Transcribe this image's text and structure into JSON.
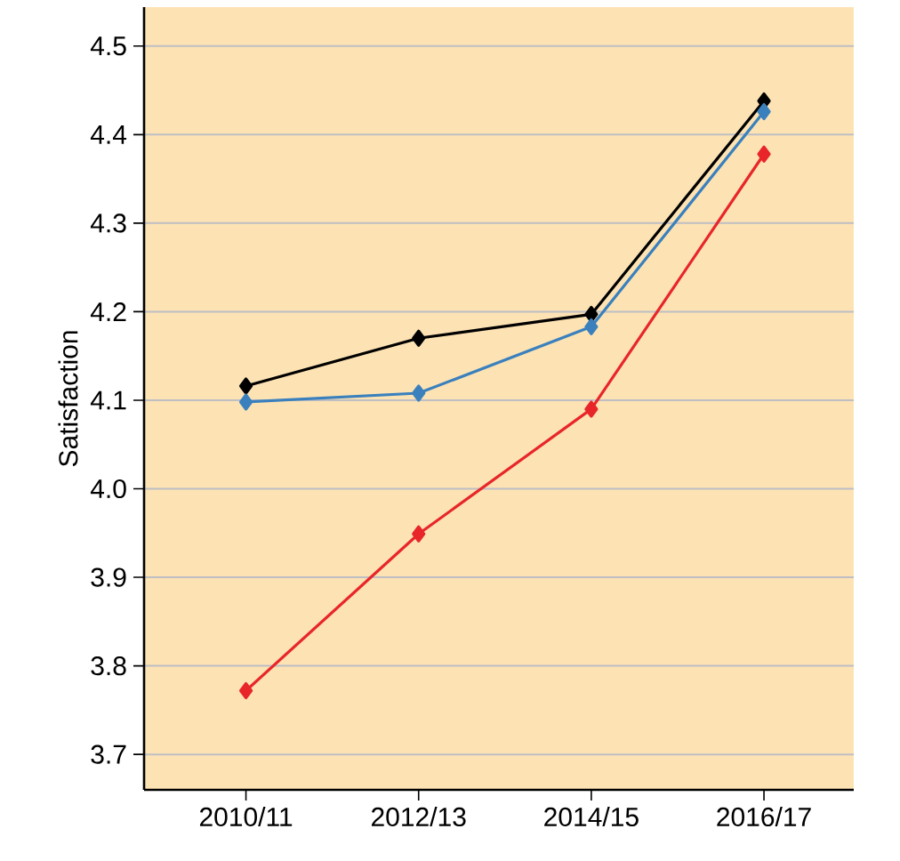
{
  "chart_data": {
    "type": "line",
    "ylabel": "Satisfaction",
    "categories": [
      "2010/11",
      "2012/13",
      "2014/15",
      "2016/17"
    ],
    "series": [
      {
        "color": "#000000",
        "values": [
          4.116,
          4.17,
          4.197,
          4.438
        ]
      },
      {
        "color": "#3a80bd",
        "values": [
          4.098,
          4.108,
          4.183,
          4.426
        ]
      },
      {
        "color": "#e8262a",
        "values": [
          3.772,
          3.949,
          4.09,
          4.378
        ]
      }
    ],
    "ylim": [
      3.66,
      4.544
    ],
    "yticks": [
      3.7,
      3.8,
      3.9,
      {
        "value": 4,
        "label": "4.0"
      },
      4.1,
      4.2,
      4.3,
      4.4,
      4.5
    ],
    "grid": "y",
    "marker": "diamond",
    "line_style": "solid"
  }
}
